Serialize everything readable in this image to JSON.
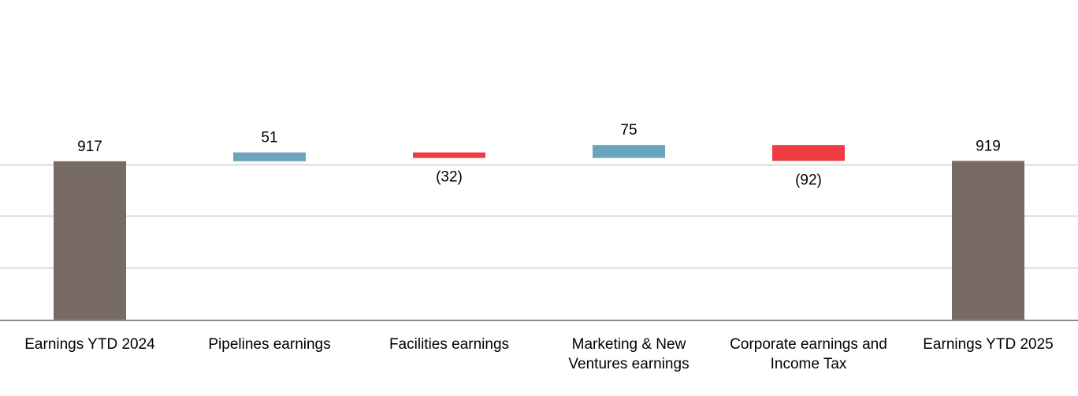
{
  "chart_data": {
    "type": "waterfall",
    "title": "",
    "xlabel": "",
    "ylabel": "",
    "ylim": [
      0,
      1100
    ],
    "grid": true,
    "categories": [
      [
        "Earnings YTD 2024"
      ],
      [
        "Pipelines earnings"
      ],
      [
        "Facilities earnings"
      ],
      [
        "Marketing & New",
        "Ventures earnings"
      ],
      [
        "Corporate earnings and",
        "Income Tax"
      ],
      [
        "Earnings YTD 2025"
      ]
    ],
    "values": [
      917,
      51,
      -32,
      75,
      -92,
      919
    ],
    "measures": [
      "total",
      "relative",
      "relative",
      "relative",
      "relative",
      "total"
    ],
    "data_labels": [
      "917",
      "51",
      "(32)",
      "75",
      "(92)",
      "919"
    ],
    "colors": {
      "total": "#786a64",
      "increase": "#6aa3bc",
      "decrease": "#ee3c41",
      "grid": "#d9d9d9",
      "axis": "#8c8c8c"
    }
  }
}
